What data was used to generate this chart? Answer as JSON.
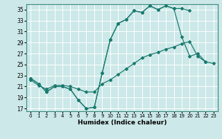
{
  "title": "",
  "xlabel": "Humidex (Indice chaleur)",
  "bg_color": "#cce8e8",
  "line_color": "#1a7a6e",
  "grid_color": "#ffffff",
  "xlim": [
    -0.5,
    23.5
  ],
  "ylim": [
    16.5,
    36.0
  ],
  "xticks": [
    0,
    1,
    2,
    3,
    4,
    5,
    6,
    7,
    8,
    9,
    10,
    11,
    12,
    13,
    14,
    15,
    16,
    17,
    18,
    19,
    20,
    21,
    22,
    23
  ],
  "yticks": [
    17,
    19,
    21,
    23,
    25,
    27,
    29,
    31,
    33,
    35
  ],
  "line1_x": [
    0,
    1,
    2,
    3,
    4,
    5,
    6,
    7,
    8,
    9,
    10,
    11,
    12,
    13,
    14,
    15,
    16,
    17,
    18,
    19,
    20,
    21,
    22
  ],
  "line1_y": [
    22.5,
    21.5,
    20.0,
    21.0,
    21.0,
    20.5,
    18.5,
    17.0,
    17.2,
    23.5,
    29.5,
    32.5,
    33.2,
    34.8,
    34.5,
    35.7,
    35.0,
    35.7,
    35.2,
    30.0,
    26.5,
    27.0,
    25.5
  ],
  "line2_x": [
    0,
    1,
    2,
    3,
    4,
    5,
    6,
    7,
    8,
    9,
    10,
    11,
    12,
    13,
    14,
    15,
    16,
    17,
    18,
    19,
    20
  ],
  "line2_y": [
    22.5,
    21.5,
    20.0,
    21.0,
    21.0,
    20.5,
    18.5,
    17.0,
    17.2,
    23.5,
    29.5,
    32.5,
    33.2,
    34.8,
    34.5,
    35.7,
    35.0,
    35.7,
    35.2,
    35.2,
    34.8
  ],
  "line3_x": [
    0,
    1,
    2,
    3,
    4,
    5,
    6,
    7,
    8,
    9,
    10,
    11,
    12,
    13,
    14,
    15,
    16,
    17,
    18,
    19,
    20,
    21,
    22,
    23
  ],
  "line3_y": [
    22.2,
    21.2,
    20.5,
    21.2,
    21.2,
    21.0,
    20.5,
    20.0,
    20.0,
    21.5,
    22.2,
    23.2,
    24.2,
    25.2,
    26.2,
    26.8,
    27.2,
    27.8,
    28.2,
    28.8,
    29.2,
    26.5,
    25.5,
    25.2
  ]
}
